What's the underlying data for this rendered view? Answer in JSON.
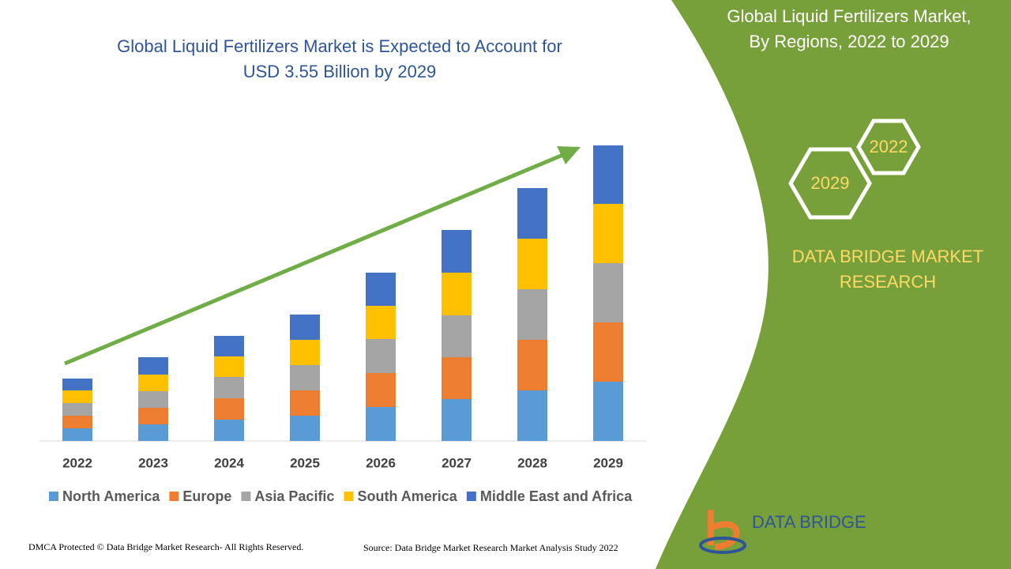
{
  "chart_data": {
    "type": "stacked_bar",
    "title": [
      "Global Liquid Fertilizers Market is Expected to Account for",
      "USD 3.55 Billion by 2029"
    ],
    "categories": [
      "2022",
      "2023",
      "2024",
      "2025",
      "2026",
      "2027",
      "2028",
      "2029"
    ],
    "series": [
      {
        "name": "North America",
        "color": "#5b9bd5",
        "values": [
          16,
          21,
          27,
          32,
          43,
          53,
          64,
          75
        ]
      },
      {
        "name": "Europe",
        "color": "#ed7d31",
        "values": [
          16,
          21,
          27,
          32,
          43,
          53,
          64,
          75
        ]
      },
      {
        "name": "Asia Pacific",
        "color": "#a5a5a5",
        "values": [
          16,
          21,
          27,
          32,
          43,
          53,
          64,
          75
        ]
      },
      {
        "name": "South America",
        "color": "#ffc000",
        "values": [
          16,
          21,
          26,
          32,
          42,
          54,
          64,
          75
        ]
      },
      {
        "name": "Middle East and Africa",
        "color": "#4472c4",
        "values": [
          15,
          22,
          26,
          32,
          42,
          54,
          64,
          74
        ]
      }
    ],
    "ylim": [
      0,
      400
    ]
  },
  "panel": {
    "title": [
      "Global Liquid Fertilizers Market,",
      "By Regions, 2022 to 2029"
    ],
    "hex_top": "2022",
    "hex_bottom": "2029",
    "brand": [
      "DATA BRIDGE MARKET",
      "RESEARCH"
    ],
    "logo": "DATA BRIDGE"
  },
  "footer": {
    "left": "DMCA Protected © Data Bridge Market Research- All Rights Reserved.",
    "right": "Source: Data Bridge Market Research Market Analysis Study 2022"
  }
}
